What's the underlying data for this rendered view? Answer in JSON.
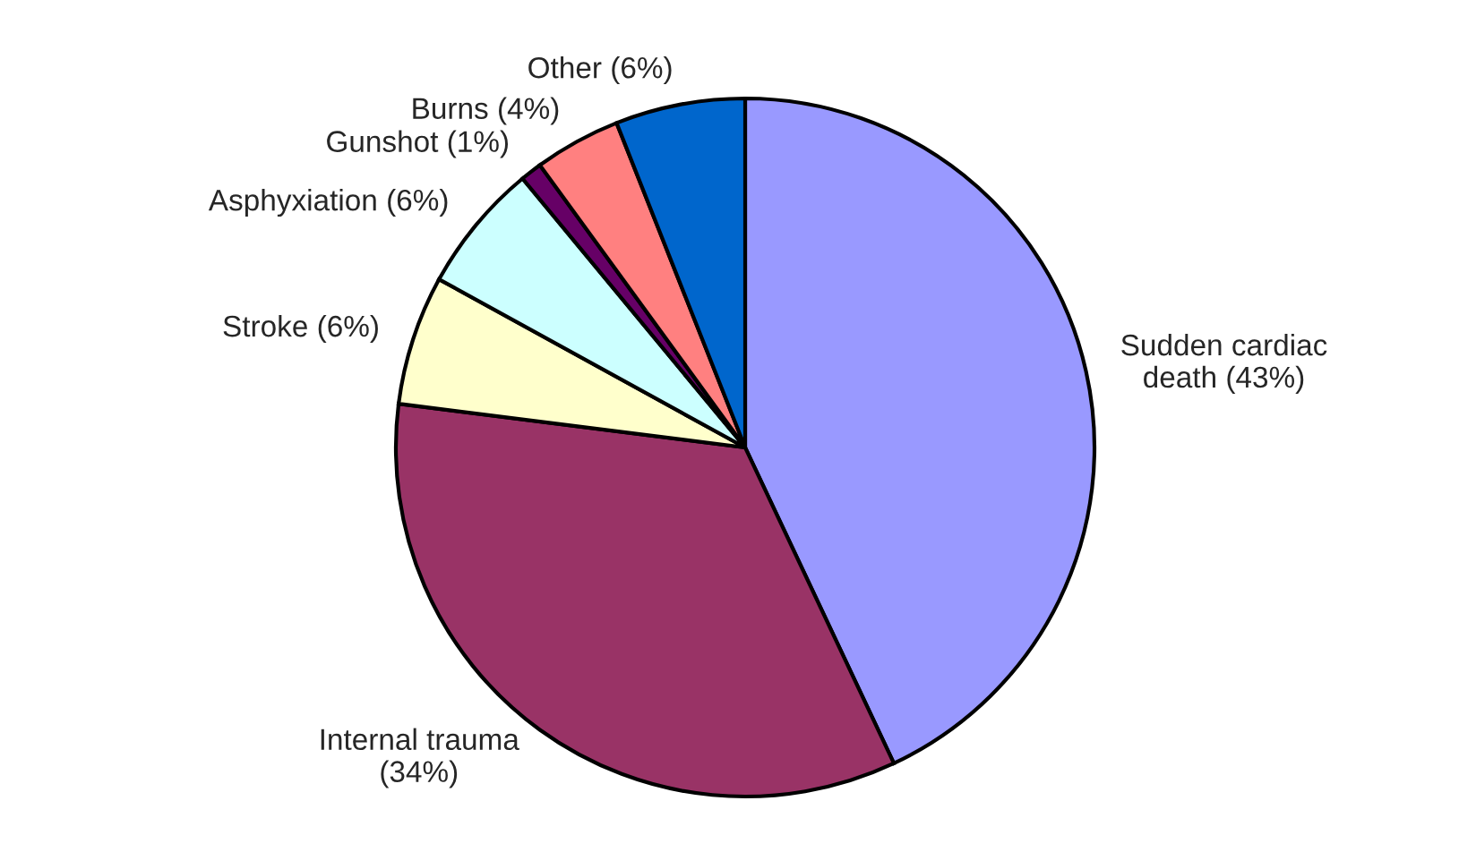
{
  "chart_data": {
    "type": "pie",
    "categories": [
      "Sudden cardiac\ndeath (43%)",
      "Internal trauma\n(34%)",
      "Stroke (6%)",
      "Asphyxiation (6%)",
      "Gunshot (1%)",
      "Burns (4%)",
      "Other (6%)"
    ],
    "values": [
      43,
      34,
      6,
      6,
      1,
      4,
      6
    ],
    "colors": [
      "#9999ff",
      "#993366",
      "#ffffcc",
      "#ccffff",
      "#660066",
      "#ff8080",
      "#0066cc"
    ],
    "legend": false
  }
}
